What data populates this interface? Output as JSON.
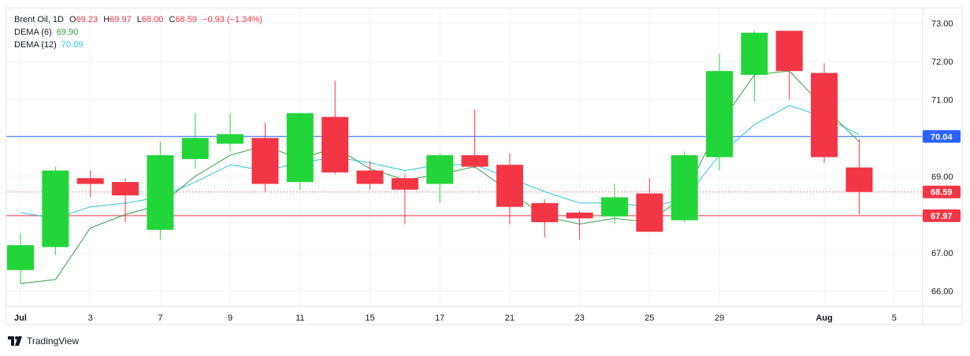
{
  "legend": {
    "symbol": "Brent Oil",
    "interval": "1D",
    "open_key": "O",
    "open": "69.23",
    "high_key": "H",
    "high": "69.97",
    "low_key": "L",
    "low": "68.00",
    "close_key": "C",
    "close": "68.59",
    "change": "−0.93 (−1.34%)",
    "dema6_label": "DEMA (6)",
    "dema6_value": "69.90",
    "dema12_label": "DEMA (12)",
    "dema12_value": "70.09"
  },
  "branding": {
    "logo_text": "TradingView"
  },
  "colors": {
    "up": "#22d63a",
    "down": "#f23645",
    "dema6": "#2e9e44",
    "dema12": "#26c6da",
    "hline_blue": "#2962ff",
    "hline_red": "#f23645",
    "grid": "#f0f3fa",
    "axis_text": "#131722"
  },
  "chart_data": {
    "type": "candlestick",
    "y_ticks": [
      "66.00",
      "67.00",
      "68.00",
      "69.00",
      "70.00",
      "71.00",
      "72.00",
      "73.00"
    ],
    "ylim": [
      65.6,
      73.4
    ],
    "x_ticks": [
      {
        "i": 0,
        "label": "Jul",
        "bold": true
      },
      {
        "i": 2,
        "label": "3"
      },
      {
        "i": 4,
        "label": "7"
      },
      {
        "i": 6,
        "label": "9"
      },
      {
        "i": 8,
        "label": "11"
      },
      {
        "i": 10,
        "label": "15"
      },
      {
        "i": 12,
        "label": "17"
      },
      {
        "i": 14,
        "label": "21"
      },
      {
        "i": 16,
        "label": "23"
      },
      {
        "i": 18,
        "label": "25"
      },
      {
        "i": 20,
        "label": "29"
      },
      {
        "i": 23,
        "label": "Aug",
        "bold": true
      },
      {
        "i": 25,
        "label": "5"
      }
    ],
    "candles": [
      {
        "o": 66.55,
        "h": 67.5,
        "l": 66.2,
        "c": 67.2
      },
      {
        "o": 67.15,
        "h": 69.25,
        "l": 66.95,
        "c": 69.15
      },
      {
        "o": 68.95,
        "h": 69.15,
        "l": 68.45,
        "c": 68.8
      },
      {
        "o": 68.85,
        "h": 68.95,
        "l": 67.8,
        "c": 68.5
      },
      {
        "o": 67.6,
        "h": 69.9,
        "l": 67.35,
        "c": 69.55
      },
      {
        "o": 69.45,
        "h": 70.65,
        "l": 69.2,
        "c": 70.0
      },
      {
        "o": 69.85,
        "h": 70.65,
        "l": 69.65,
        "c": 70.1
      },
      {
        "o": 70.0,
        "h": 70.4,
        "l": 68.6,
        "c": 68.8
      },
      {
        "o": 68.85,
        "h": 70.65,
        "l": 68.65,
        "c": 70.65
      },
      {
        "o": 70.55,
        "h": 71.5,
        "l": 69.05,
        "c": 69.1
      },
      {
        "o": 69.15,
        "h": 69.4,
        "l": 68.65,
        "c": 68.8
      },
      {
        "o": 68.95,
        "h": 69.05,
        "l": 67.75,
        "c": 68.65
      },
      {
        "o": 68.8,
        "h": 69.6,
        "l": 68.3,
        "c": 69.55
      },
      {
        "o": 69.55,
        "h": 70.75,
        "l": 69.2,
        "c": 69.25
      },
      {
        "o": 69.3,
        "h": 69.6,
        "l": 67.75,
        "c": 68.2
      },
      {
        "o": 68.3,
        "h": 68.4,
        "l": 67.4,
        "c": 67.8
      },
      {
        "o": 68.05,
        "h": 68.1,
        "l": 67.35,
        "c": 67.9
      },
      {
        "o": 67.95,
        "h": 68.8,
        "l": 67.75,
        "c": 68.45
      },
      {
        "o": 68.55,
        "h": 68.95,
        "l": 67.55,
        "c": 67.55
      },
      {
        "o": 67.85,
        "h": 69.65,
        "l": 67.8,
        "c": 69.55
      },
      {
        "o": 69.5,
        "h": 72.2,
        "l": 69.15,
        "c": 71.75
      },
      {
        "o": 71.65,
        "h": 72.8,
        "l": 70.95,
        "c": 72.75
      },
      {
        "o": 72.8,
        "h": 72.8,
        "l": 71.0,
        "c": 71.75
      },
      {
        "o": 71.7,
        "h": 71.95,
        "l": 69.35,
        "c": 69.5
      },
      {
        "o": 69.23,
        "h": 69.97,
        "l": 68.0,
        "c": 68.59
      }
    ],
    "dema6": [
      66.2,
      66.3,
      67.65,
      68.0,
      68.25,
      69.0,
      69.55,
      69.8,
      69.45,
      69.75,
      69.2,
      68.9,
      69.05,
      69.25,
      68.6,
      67.95,
      67.75,
      67.9,
      67.8,
      68.5,
      70.35,
      71.65,
      71.75,
      70.8,
      69.9
    ],
    "dema12": [
      68.05,
      67.9,
      68.2,
      68.3,
      68.45,
      68.85,
      69.3,
      69.15,
      69.35,
      69.5,
      69.35,
      69.15,
      69.3,
      69.3,
      68.95,
      68.6,
      68.3,
      68.3,
      68.2,
      68.4,
      69.55,
      70.35,
      70.85,
      70.55,
      70.09
    ],
    "horizontal_lines": [
      {
        "value": 70.04,
        "label": "70.04",
        "style": "solid",
        "color": "#2962ff"
      },
      {
        "value": 67.97,
        "label": "67.97",
        "style": "solid",
        "color": "#f23645"
      },
      {
        "value": 68.59,
        "label": "68.59",
        "style": "dotted",
        "color": "#f23645"
      }
    ]
  }
}
